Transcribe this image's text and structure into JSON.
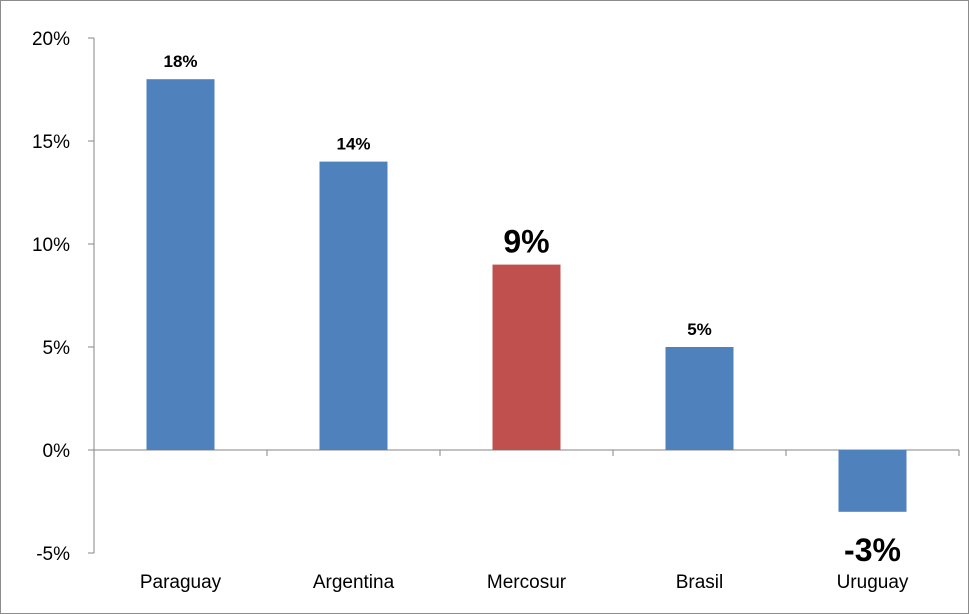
{
  "chart_data": {
    "type": "bar",
    "categories": [
      "Paraguay",
      "Argentina",
      "Mercosur",
      "Brasil",
      "Uruguay"
    ],
    "values": [
      18,
      14,
      9,
      5,
      -3
    ],
    "data_labels": [
      "18%",
      "14%",
      "9%",
      "5%",
      "-3%"
    ],
    "highlight_category": "Mercosur",
    "y_ticks": [
      -5,
      0,
      5,
      10,
      15,
      20
    ],
    "y_tick_labels": [
      "-5%",
      "0%",
      "5%",
      "10%",
      "15%",
      "20%"
    ],
    "ylim": [
      -5,
      20
    ],
    "grid": false,
    "legend": "none",
    "title": "",
    "xlabel": "",
    "ylabel": "",
    "colors": {
      "bar": "#4f81bd",
      "highlight": "#c0504d",
      "axis": "#868686"
    }
  }
}
